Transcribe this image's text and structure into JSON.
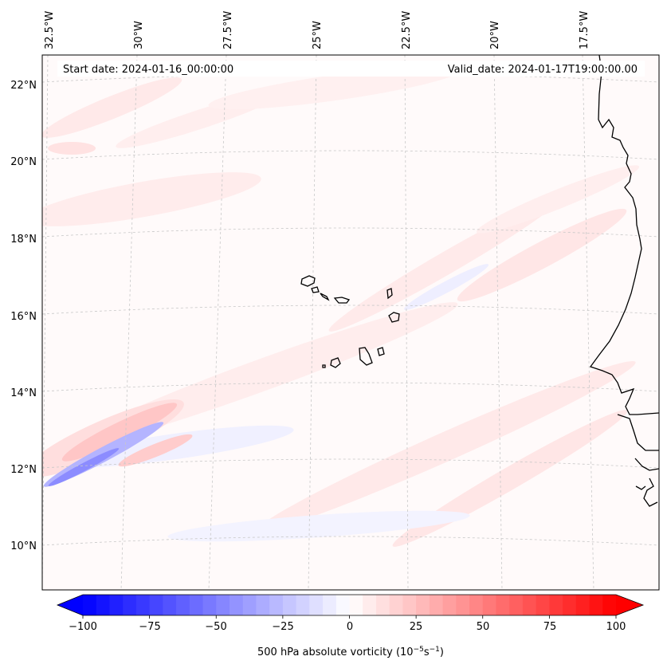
{
  "map": {
    "start_label": "Start date: 2024-01-16_00:00:00",
    "valid_label": "Valid_date: 2024-01-17T19:00:00.00",
    "lon_labels": [
      "32.5°W",
      "30°W",
      "27.5°W",
      "25°W",
      "22.5°W",
      "20°W",
      "17.5°W"
    ],
    "lat_labels": [
      "22°N",
      "20°N",
      "18°N",
      "16°N",
      "14°N",
      "12°N",
      "10°N"
    ],
    "field": "500 hPa absolute vorticity",
    "gridline_color": "#bdbdbd",
    "coast_color": "#000000"
  },
  "colorbar": {
    "label": "500 hPa absolute vorticity (10⁻⁵s⁻¹)",
    "label_main": "500 hPa absolute vorticity (10",
    "label_exp1": "−5",
    "label_mid": "s",
    "label_exp2": "−1",
    "label_end": ")",
    "tick_labels": [
      "−100",
      "−75",
      "−50",
      "−25",
      "0",
      "25",
      "50",
      "75",
      "100"
    ],
    "min": -100,
    "max": 100,
    "step": 5,
    "low_color": "#0000ff",
    "mid_color": "#ffffff",
    "high_color": "#ff0000"
  }
}
